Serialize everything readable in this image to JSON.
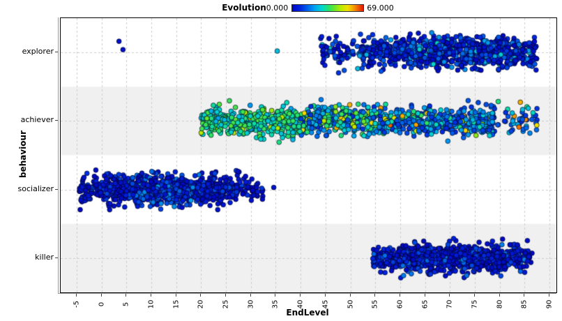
{
  "legend": {
    "title": "Evolution",
    "min_label": "0.000",
    "max_label": "69.000"
  },
  "chart_data": {
    "type": "scatter",
    "title": "Evolution",
    "xlabel": "EndLevel",
    "ylabel": "behaviour",
    "x_ticks": [
      -5,
      0,
      5,
      10,
      15,
      20,
      25,
      30,
      35,
      40,
      45,
      50,
      55,
      60,
      65,
      70,
      75,
      80,
      85,
      90
    ],
    "x_tick_labels": [
      "-5",
      "0",
      "5",
      "10",
      "15",
      "20",
      "25",
      "30",
      "35",
      "40",
      "45",
      "50",
      "55",
      "60",
      "65",
      "70",
      "75",
      "80",
      "85",
      "90"
    ],
    "xlim": [
      -8.2,
      91.4
    ],
    "categories": [
      "explorer",
      "achiever",
      "socializer",
      "killer"
    ],
    "grid": true,
    "legend_position": "top",
    "color_scale": {
      "label": "Evolution",
      "min": 0.0,
      "max": 69.0,
      "stops": [
        {
          "t": 0.0,
          "color": "#0008C0"
        },
        {
          "t": 0.1,
          "color": "#0020DC"
        },
        {
          "t": 0.22,
          "color": "#0064EB"
        },
        {
          "t": 0.32,
          "color": "#00A5F0"
        },
        {
          "t": 0.42,
          "color": "#00D7CD"
        },
        {
          "t": 0.5,
          "color": "#1EE178"
        },
        {
          "t": 0.58,
          "color": "#5AE632"
        },
        {
          "t": 0.68,
          "color": "#B4EB00"
        },
        {
          "t": 0.78,
          "color": "#F0E100"
        },
        {
          "t": 0.86,
          "color": "#F5A000"
        },
        {
          "t": 0.93,
          "color": "#F05A00"
        },
        {
          "t": 1.0,
          "color": "#E11900"
        }
      ]
    },
    "style": {
      "band_colors": [
        "#ffffff",
        "#f0f0f0"
      ],
      "grid_color": "#cccccc",
      "point_stroke": "rgba(0,0,25,0.75)",
      "point_radius": 3.4
    },
    "clusters": [
      {
        "category": "explorer",
        "x_min": 44,
        "x_max": 87.5,
        "count": 900,
        "density": [
          1,
          2.5,
          4,
          4.5,
          4.5,
          3
        ],
        "sigma_y": 10,
        "clip_y": 30,
        "color_segments": [
          {
            "x0": 44,
            "x1": 87.5,
            "mix": [
              [
                0,
                7,
                0.5
              ],
              [
                7,
                15,
                0.32
              ],
              [
                15,
                23,
                0.13
              ],
              [
                23,
                30,
                0.05
              ]
            ]
          }
        ]
      },
      {
        "category": "achiever",
        "x_min": 20,
        "x_max": 87.5,
        "count": 1300,
        "density": [
          3.5,
          4,
          4,
          4,
          3.5,
          3.5,
          3,
          1.5
        ],
        "sigma_y": 10,
        "clip_y": 31,
        "color_segments": [
          {
            "x0": 20,
            "x1": 40,
            "mix": [
              [
                26,
                40,
                0.8
              ],
              [
                20,
                26,
                0.12
              ],
              [
                40,
                48,
                0.08
              ]
            ]
          },
          {
            "x0": 40,
            "x1": 56,
            "mix": [
              [
                24,
                38,
                0.38
              ],
              [
                14,
                24,
                0.32
              ],
              [
                8,
                14,
                0.15
              ],
              [
                38,
                50,
                0.1
              ],
              [
                50,
                62,
                0.05
              ]
            ]
          },
          {
            "x0": 56,
            "x1": 87.5,
            "mix": [
              [
                8,
                16,
                0.46
              ],
              [
                16,
                26,
                0.3
              ],
              [
                26,
                36,
                0.14
              ],
              [
                36,
                48,
                0.05
              ],
              [
                48,
                58,
                0.03
              ],
              [
                58,
                64,
                0.02
              ]
            ]
          }
        ]
      },
      {
        "category": "socializer",
        "x_min": -4.5,
        "x_max": 32.5,
        "count": 1000,
        "density": [
          2,
          4,
          4.5,
          4.5,
          4,
          3,
          1.2
        ],
        "sigma_y": 10,
        "clip_y": 30,
        "color_segments": [
          {
            "x0": -4.5,
            "x1": 5,
            "mix": [
              [
                0,
                6,
                0.75
              ],
              [
                6,
                12,
                0.25
              ]
            ]
          },
          {
            "x0": 5,
            "x1": 20,
            "mix": [
              [
                0,
                6,
                0.45
              ],
              [
                6,
                14,
                0.33
              ],
              [
                14,
                22,
                0.22
              ]
            ]
          },
          {
            "x0": 20,
            "x1": 32.5,
            "mix": [
              [
                0,
                6,
                0.78
              ],
              [
                6,
                13,
                0.22
              ]
            ]
          }
        ]
      },
      {
        "category": "killer",
        "x_min": 54.5,
        "x_max": 86.5,
        "count": 850,
        "density": [
          2,
          4,
          4.5,
          4.5,
          4,
          2
        ],
        "sigma_y": 9.5,
        "clip_y": 29,
        "color_segments": [
          {
            "x0": 54.5,
            "x1": 86.5,
            "mix": [
              [
                0,
                6,
                0.68
              ],
              [
                6,
                12,
                0.26
              ],
              [
                12,
                18,
                0.06
              ]
            ]
          }
        ]
      }
    ],
    "outliers": [
      {
        "category": "explorer",
        "x": 3.5,
        "dy": -16,
        "evolution": 2
      },
      {
        "category": "explorer",
        "x": 4.3,
        "dy": -4,
        "evolution": 2
      },
      {
        "category": "explorer",
        "x": 35.3,
        "dy": -2,
        "evolution": 26
      },
      {
        "category": "socializer",
        "x": 27.4,
        "dy": -26,
        "evolution": 2
      },
      {
        "category": "socializer",
        "x": 34.6,
        "dy": -3,
        "evolution": 3
      }
    ]
  }
}
